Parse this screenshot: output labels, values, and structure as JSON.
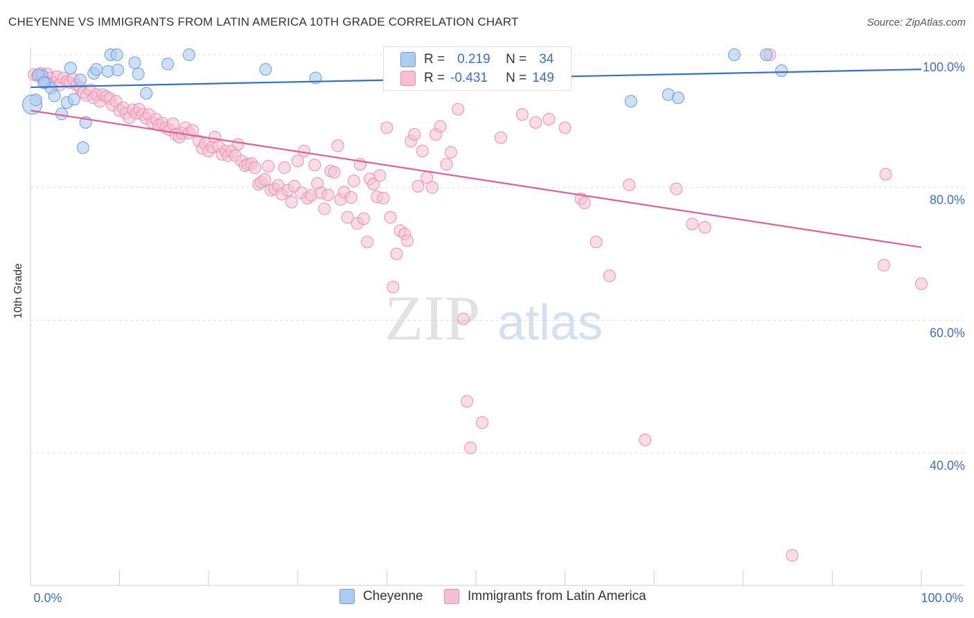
{
  "header": {
    "title": "CHEYENNE VS IMMIGRANTS FROM LATIN AMERICA 10TH GRADE CORRELATION CHART",
    "source": "Source: ZipAtlas.com"
  },
  "legend": {
    "series": [
      {
        "name": "Cheyenne",
        "r_label": "R =",
        "r_value": "0.219",
        "n_label": "N =",
        "n_value": "34"
      },
      {
        "name": "Immigrants from Latin America",
        "r_label": "R =",
        "r_value": "-0.431",
        "n_label": "N =",
        "n_value": "149"
      }
    ]
  },
  "watermark": {
    "zip": "ZIP",
    "atlas": "atlas"
  },
  "colors": {
    "blue_fill": "#aecbf0",
    "blue_stroke": "#6d9be0",
    "blue_line": "#2f6fd0",
    "pink_fill": "#f7c0d2",
    "pink_stroke": "#e890ae",
    "pink_line": "#e0608f",
    "grid": "#dddddd",
    "axis_label": "#3a6fd0"
  },
  "chart_data": {
    "type": "scatter",
    "title": "CHEYENNE VS IMMIGRANTS FROM LATIN AMERICA 10TH GRADE CORRELATION CHART",
    "xlabel": "",
    "ylabel": "10th Grade",
    "xlim": [
      0,
      100
    ],
    "ylim": [
      20,
      102
    ],
    "x_tick_labels": [
      "0.0%",
      "100.0%"
    ],
    "y_ticks": [
      40,
      60,
      80,
      100
    ],
    "y_tick_labels": [
      "40.0%",
      "60.0%",
      "80.0%",
      "100.0%"
    ],
    "grid": true,
    "legend_position": "top-center",
    "series": [
      {
        "name": "Cheyenne",
        "trend": {
          "x": [
            0,
            100
          ],
          "y": [
            95.1,
            97.8
          ]
        },
        "points": [
          [
            0.2,
            92.5
          ],
          [
            0.6,
            93.2
          ],
          [
            1.3,
            96.9
          ],
          [
            1.7,
            95.8
          ],
          [
            2.3,
            95.0
          ],
          [
            2.7,
            93.8
          ],
          [
            3.5,
            91.1
          ],
          [
            4.1,
            92.8
          ],
          [
            4.5,
            98.0
          ],
          [
            4.9,
            93.3
          ],
          [
            5.6,
            96.2
          ],
          [
            5.9,
            86.0
          ],
          [
            6.2,
            89.8
          ],
          [
            7.1,
            97.2
          ],
          [
            7.4,
            97.8
          ],
          [
            8.7,
            97.5
          ],
          [
            9.0,
            100.0
          ],
          [
            9.7,
            100.0
          ],
          [
            9.8,
            97.7
          ],
          [
            11.7,
            98.8
          ],
          [
            12.1,
            97.1
          ],
          [
            13.0,
            94.2
          ],
          [
            15.4,
            98.6
          ],
          [
            17.8,
            100.0
          ],
          [
            26.4,
            97.8
          ],
          [
            32.0,
            96.5
          ],
          [
            67.4,
            93.0
          ],
          [
            71.6,
            94.0
          ],
          [
            72.7,
            93.5
          ],
          [
            79.0,
            100.0
          ],
          [
            82.6,
            100.0
          ],
          [
            84.3,
            97.6
          ],
          [
            0.9,
            97.0
          ],
          [
            1.5,
            95.8
          ]
        ]
      },
      {
        "name": "Immigrants from Latin America",
        "trend": {
          "x": [
            0,
            100
          ],
          "y": [
            91.6,
            71.0
          ]
        },
        "points": [
          [
            0.4,
            97.0
          ],
          [
            0.8,
            96.8
          ],
          [
            1.2,
            97.2
          ],
          [
            1.5,
            96.2
          ],
          [
            1.9,
            97.1
          ],
          [
            2.2,
            96.5
          ],
          [
            2.6,
            95.8
          ],
          [
            3.0,
            96.7
          ],
          [
            3.3,
            95.5
          ],
          [
            3.7,
            96.5
          ],
          [
            4.1,
            96.0
          ],
          [
            4.4,
            95.8
          ],
          [
            4.8,
            96.3
          ],
          [
            5.2,
            95.4
          ],
          [
            5.6,
            95.0
          ],
          [
            5.9,
            94.3
          ],
          [
            6.3,
            93.9
          ],
          [
            6.7,
            94.7
          ],
          [
            7.1,
            93.5
          ],
          [
            7.4,
            94.0
          ],
          [
            7.8,
            93.0
          ],
          [
            8.1,
            94.0
          ],
          [
            8.5,
            93.7
          ],
          [
            8.9,
            93.4
          ],
          [
            9.2,
            92.4
          ],
          [
            9.6,
            93.0
          ],
          [
            10.0,
            91.6
          ],
          [
            10.4,
            92.0
          ],
          [
            10.7,
            91.2
          ],
          [
            11.1,
            90.5
          ],
          [
            11.5,
            91.7
          ],
          [
            11.9,
            91.2
          ],
          [
            12.2,
            91.8
          ],
          [
            12.6,
            91.0
          ],
          [
            13.0,
            90.4
          ],
          [
            13.3,
            91.0
          ],
          [
            13.7,
            89.8
          ],
          [
            14.1,
            90.3
          ],
          [
            14.4,
            89.4
          ],
          [
            14.8,
            89.7
          ],
          [
            15.2,
            89.0
          ],
          [
            15.6,
            88.7
          ],
          [
            16.0,
            89.6
          ],
          [
            16.3,
            88.0
          ],
          [
            16.7,
            87.6
          ],
          [
            17.0,
            88.2
          ],
          [
            17.4,
            89.0
          ],
          [
            17.8,
            88.2
          ],
          [
            18.2,
            88.6
          ],
          [
            18.9,
            87.0
          ],
          [
            19.3,
            85.9
          ],
          [
            19.6,
            86.6
          ],
          [
            20.0,
            85.5
          ],
          [
            20.4,
            86.1
          ],
          [
            20.7,
            87.6
          ],
          [
            21.1,
            86.2
          ],
          [
            21.5,
            85.0
          ],
          [
            21.9,
            85.5
          ],
          [
            22.2,
            84.8
          ],
          [
            22.6,
            85.5
          ],
          [
            23.0,
            84.8
          ],
          [
            23.3,
            86.5
          ],
          [
            23.7,
            84.0
          ],
          [
            24.1,
            83.3
          ],
          [
            24.4,
            83.5
          ],
          [
            24.8,
            83.6
          ],
          [
            25.2,
            83.0
          ],
          [
            25.6,
            80.5
          ],
          [
            25.9,
            80.8
          ],
          [
            26.3,
            81.2
          ],
          [
            26.7,
            83.2
          ],
          [
            27.0,
            79.6
          ],
          [
            27.4,
            79.8
          ],
          [
            27.8,
            80.3
          ],
          [
            28.2,
            79.0
          ],
          [
            28.5,
            83.0
          ],
          [
            28.9,
            79.6
          ],
          [
            29.3,
            77.8
          ],
          [
            29.6,
            80.2
          ],
          [
            30.0,
            84.0
          ],
          [
            30.4,
            79.2
          ],
          [
            30.7,
            85.5
          ],
          [
            31.1,
            78.4
          ],
          [
            31.5,
            78.8
          ],
          [
            31.9,
            83.4
          ],
          [
            32.2,
            80.6
          ],
          [
            32.6,
            79.2
          ],
          [
            33.0,
            76.8
          ],
          [
            33.4,
            78.9
          ],
          [
            33.7,
            82.5
          ],
          [
            34.1,
            82.3
          ],
          [
            34.5,
            86.3
          ],
          [
            34.8,
            78.2
          ],
          [
            35.2,
            79.3
          ],
          [
            35.6,
            75.5
          ],
          [
            36.0,
            78.5
          ],
          [
            36.3,
            81.0
          ],
          [
            36.7,
            74.6
          ],
          [
            37.0,
            83.5
          ],
          [
            37.4,
            75.3
          ],
          [
            37.8,
            71.8
          ],
          [
            38.1,
            81.3
          ],
          [
            38.5,
            80.5
          ],
          [
            38.9,
            78.6
          ],
          [
            39.2,
            81.8
          ],
          [
            39.6,
            78.4
          ],
          [
            40.0,
            89.0
          ],
          [
            40.4,
            75.5
          ],
          [
            40.7,
            65.0
          ],
          [
            41.1,
            70.0
          ],
          [
            41.5,
            73.5
          ],
          [
            42.0,
            73.0
          ],
          [
            42.3,
            72.0
          ],
          [
            42.7,
            87.0
          ],
          [
            43.1,
            88.0
          ],
          [
            43.5,
            80.2
          ],
          [
            44.0,
            85.5
          ],
          [
            44.5,
            81.5
          ],
          [
            45.1,
            80.0
          ],
          [
            45.5,
            88.0
          ],
          [
            46.0,
            89.2
          ],
          [
            46.7,
            83.5
          ],
          [
            47.2,
            85.3
          ],
          [
            48.0,
            91.8
          ],
          [
            48.6,
            60.2
          ],
          [
            49.0,
            47.8
          ],
          [
            49.4,
            40.8
          ],
          [
            50.7,
            44.6
          ],
          [
            52.8,
            87.5
          ],
          [
            55.2,
            91.0
          ],
          [
            56.7,
            89.8
          ],
          [
            58.2,
            90.3
          ],
          [
            60.0,
            89.0
          ],
          [
            61.8,
            78.3
          ],
          [
            62.2,
            77.7
          ],
          [
            63.5,
            71.8
          ],
          [
            65.0,
            66.7
          ],
          [
            67.2,
            80.4
          ],
          [
            69.0,
            42.0
          ],
          [
            72.5,
            79.8
          ],
          [
            74.3,
            74.5
          ],
          [
            75.7,
            74.0
          ],
          [
            83.0,
            100.0
          ],
          [
            85.5,
            24.6
          ],
          [
            95.8,
            68.3
          ],
          [
            100.0,
            65.5
          ],
          [
            96.0,
            82.0
          ]
        ]
      }
    ]
  }
}
